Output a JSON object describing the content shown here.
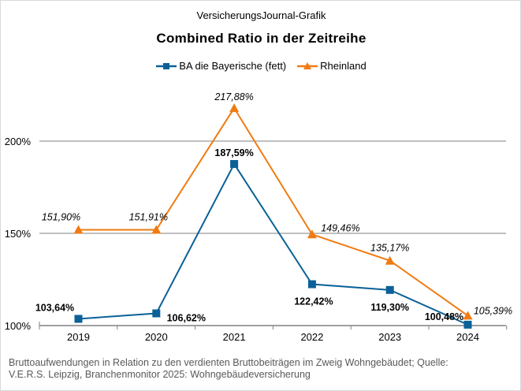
{
  "chart_data": {
    "type": "line",
    "supertitle": "VersicherungsJournal-Grafik",
    "title": "Combined Ratio in der Zeitreihe",
    "categories": [
      "2019",
      "2020",
      "2021",
      "2022",
      "2023",
      "2024"
    ],
    "yticks": [
      "100%",
      "150%",
      "200%"
    ],
    "ylim": [
      100,
      225
    ],
    "grid": "horizontal",
    "legend_position": "top",
    "series": [
      {
        "name": "BA die Bayerische (fett)",
        "color": "#0b6197",
        "marker": "square",
        "values": [
          103.64,
          106.62,
          187.59,
          122.42,
          119.3,
          100.48
        ],
        "labels": [
          "103,64%",
          "106,62%",
          "187,59%",
          "122,42%",
          "119,30%",
          "100,48%"
        ],
        "label_style": "bold"
      },
      {
        "name": "Rheinland",
        "color": "#f07b12",
        "marker": "triangle",
        "values": [
          151.9,
          151.91,
          217.88,
          149.46,
          135.17,
          105.39
        ],
        "labels": [
          "151,90%",
          "151,91%",
          "217,88%",
          "149,46%",
          "135,17%",
          "105,39%"
        ],
        "label_style": "italic"
      }
    ],
    "footnote": [
      "Bruttoaufwendungen  in Relation zu den verdienten  Bruttobeiträgen  im Zweig  Wohngebäudet;  Quelle:",
      "V.E.R.S. Leipzig, Branchenmonitor  2025: Wohngebäudeversicherung"
    ]
  }
}
